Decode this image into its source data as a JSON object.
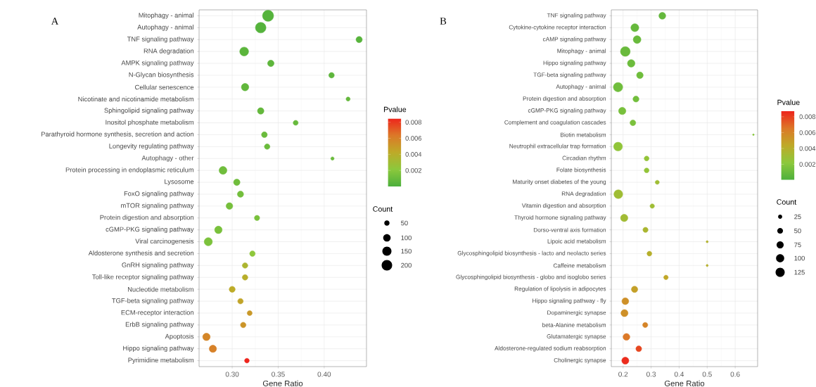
{
  "chart_data": [
    {
      "type": "bubble",
      "orientation": "horizontal",
      "title": "A",
      "xlabel": "Gene Ratio",
      "clabel": "Pvalue",
      "legend_title": "Count",
      "categories": [
        "Mitophagy - animal",
        "Autophagy - animal",
        "TNF signaling pathway",
        "RNA degradation",
        "AMPK signaling pathway",
        "N-Glycan biosynthesis",
        "Cellular senescence",
        "Nicotinate and nicotinamide metabolism",
        "Sphingolipid signaling pathway",
        "Inositol phosphate metabolism",
        "Parathyroid hormone synthesis, secretion and action",
        "Longevity regulating pathway",
        "Autophagy - other",
        "Protein processing in endoplasmic reticulum",
        "Lysosome",
        "FoxO signaling pathway",
        "mTOR signaling pathway",
        "Protein digestion and absorption",
        "cGMP-PKG signaling pathway",
        "Viral carcinogenesis",
        "Aldosterone synthesis and secretion",
        "GnRH signaling pathway",
        "Toll-like receptor signaling pathway",
        "Nucleotide metabolism",
        "TGF-beta signaling pathway",
        "ECM-receptor interaction",
        "ErbB signaling pathway",
        "Apoptosis",
        "Hippo signaling pathway",
        "Pyrimidine metabolism"
      ],
      "values": [
        0.339,
        0.331,
        0.438,
        0.313,
        0.342,
        0.408,
        0.314,
        0.426,
        0.331,
        0.369,
        0.335,
        0.338,
        0.409,
        0.29,
        0.305,
        0.309,
        0.297,
        0.327,
        0.285,
        0.274,
        0.322,
        0.314,
        0.314,
        0.3,
        0.309,
        0.319,
        0.312,
        0.272,
        0.279,
        0.316
      ],
      "sizes": [
        220,
        200,
        70,
        140,
        75,
        55,
        100,
        30,
        75,
        45,
        60,
        55,
        20,
        110,
        75,
        70,
        80,
        50,
        100,
        120,
        55,
        55,
        55,
        65,
        55,
        45,
        55,
        100,
        95,
        40
      ],
      "cvalues": [
        0.0003,
        0.0003,
        0.0004,
        0.0005,
        0.0006,
        0.0006,
        0.0007,
        0.0008,
        0.0008,
        0.0009,
        0.001,
        0.001,
        0.001,
        0.0012,
        0.0012,
        0.0013,
        0.0014,
        0.0015,
        0.0015,
        0.0016,
        0.0022,
        0.0035,
        0.004,
        0.0042,
        0.0045,
        0.005,
        0.0052,
        0.0058,
        0.006,
        0.0085
      ],
      "xlim": [
        0.264,
        0.446
      ],
      "xticks": [
        {
          "value": 0.3,
          "label": "0.30"
        },
        {
          "value": 0.35,
          "label": "0.35"
        },
        {
          "value": 0.4,
          "label": "0.40"
        }
      ],
      "clim": [
        0,
        0.0085
      ],
      "cticks": [
        0.002,
        0.004,
        0.006,
        0.008
      ],
      "size_legend": [
        50,
        100,
        150,
        200
      ],
      "grid": true
    },
    {
      "type": "bubble",
      "orientation": "horizontal",
      "title": "B",
      "xlabel": "Gene Ratio",
      "clabel": "Pvalue",
      "legend_title": "Count",
      "categories": [
        "TNF signaling pathway",
        "Cytokine-cytokine receptor interaction",
        "cAMP signaling pathway",
        "Mitophagy - animal",
        "Hippo signaling pathway",
        "TGF-beta signaling pathway",
        "Autophagy - animal",
        "Protein digestion and absorption",
        "cGMP-PKG signaling pathway",
        "Complement and coagulation cascades",
        "Biotin metabolism",
        "Neutrophil extracellular trap formation",
        "Circadian rhythm",
        "Folate biosynthesis",
        "Maturity onset diabetes of the young",
        "RNA degradation",
        "Vitamin digestion and absorption",
        "Thyroid hormone signaling pathway",
        "Dorso-ventral axis formation",
        "Lipoic acid metabolism",
        "Glycosphingolipid biosynthesis - lacto and neolacto series",
        "Caffeine metabolism",
        "Glycosphingolipid biosynthesis - globo and isoglobo series",
        "Regulation of lipolysis in adipocytes",
        "Hippo signaling pathway - fly",
        "Dopaminergic synapse",
        "beta-Alanine metabolism",
        "Glutamatergic synapse",
        "Aldosterone-regulated sodium reabsorption",
        "Cholinergic synapse"
      ],
      "values": [
        0.34,
        0.242,
        0.25,
        0.208,
        0.229,
        0.26,
        0.182,
        0.246,
        0.197,
        0.235,
        0.665,
        0.182,
        0.284,
        0.284,
        0.322,
        0.183,
        0.304,
        0.204,
        0.28,
        0.5,
        0.294,
        0.5,
        0.353,
        0.241,
        0.208,
        0.205,
        0.279,
        0.212,
        0.256,
        0.208
      ],
      "sizes": [
        70,
        95,
        90,
        140,
        85,
        65,
        130,
        55,
        80,
        50,
        4,
        115,
        35,
        35,
        25,
        115,
        30,
        80,
        40,
        7,
        35,
        7,
        30,
        60,
        70,
        75,
        40,
        70,
        50,
        75
      ],
      "cvalues": [
        0.0008,
        0.0009,
        0.001,
        0.001,
        0.0011,
        0.0012,
        0.0012,
        0.0013,
        0.0015,
        0.0016,
        0.002,
        0.0024,
        0.0025,
        0.0025,
        0.003,
        0.003,
        0.003,
        0.0031,
        0.0035,
        0.0038,
        0.004,
        0.004,
        0.0045,
        0.0048,
        0.0055,
        0.0055,
        0.006,
        0.0065,
        0.0078,
        0.0085
      ],
      "xlim": [
        0.158,
        0.68
      ],
      "xticks": [
        0.2,
        0.3,
        0.4,
        0.5,
        0.6
      ],
      "clim": [
        0,
        0.0087
      ],
      "cticks": [
        0.002,
        0.004,
        0.006,
        0.008
      ],
      "size_legend": [
        25,
        50,
        75,
        100,
        125
      ],
      "grid": true
    }
  ]
}
